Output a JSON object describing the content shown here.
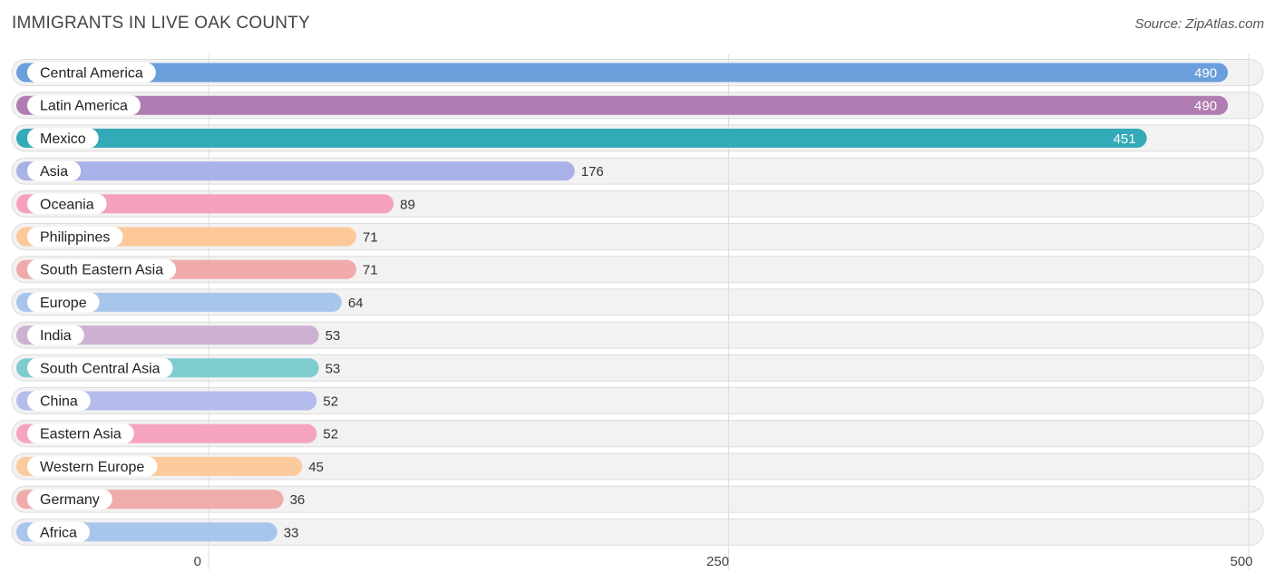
{
  "title": "IMMIGRANTS IN LIVE OAK COUNTY",
  "source": "Source: ZipAtlas.com",
  "chart_data": {
    "type": "bar",
    "orientation": "horizontal",
    "title": "IMMIGRANTS IN LIVE OAK COUNTY",
    "xlabel": "",
    "ylabel": "",
    "xlim": [
      0,
      500
    ],
    "x_ticks": [
      0,
      250,
      500
    ],
    "grid": true,
    "categories": [
      "Central America",
      "Latin America",
      "Mexico",
      "Asia",
      "Oceania",
      "Philippines",
      "South Eastern Asia",
      "Europe",
      "India",
      "South Central Asia",
      "China",
      "Eastern Asia",
      "Western Europe",
      "Germany",
      "Africa"
    ],
    "values": [
      490,
      490,
      451,
      176,
      89,
      71,
      71,
      64,
      53,
      53,
      52,
      52,
      45,
      36,
      33
    ],
    "colors": [
      "#6a9fdc",
      "#b07cb1",
      "#33aab8",
      "#a8b1e8",
      "#f6a1bc",
      "#fcc898",
      "#f0aaa9",
      "#a8c6ec",
      "#cdb1d3",
      "#7dccd0",
      "#b3bced",
      "#f6a4bd",
      "#fcca9c",
      "#f0acab",
      "#a8c6ec"
    ]
  }
}
